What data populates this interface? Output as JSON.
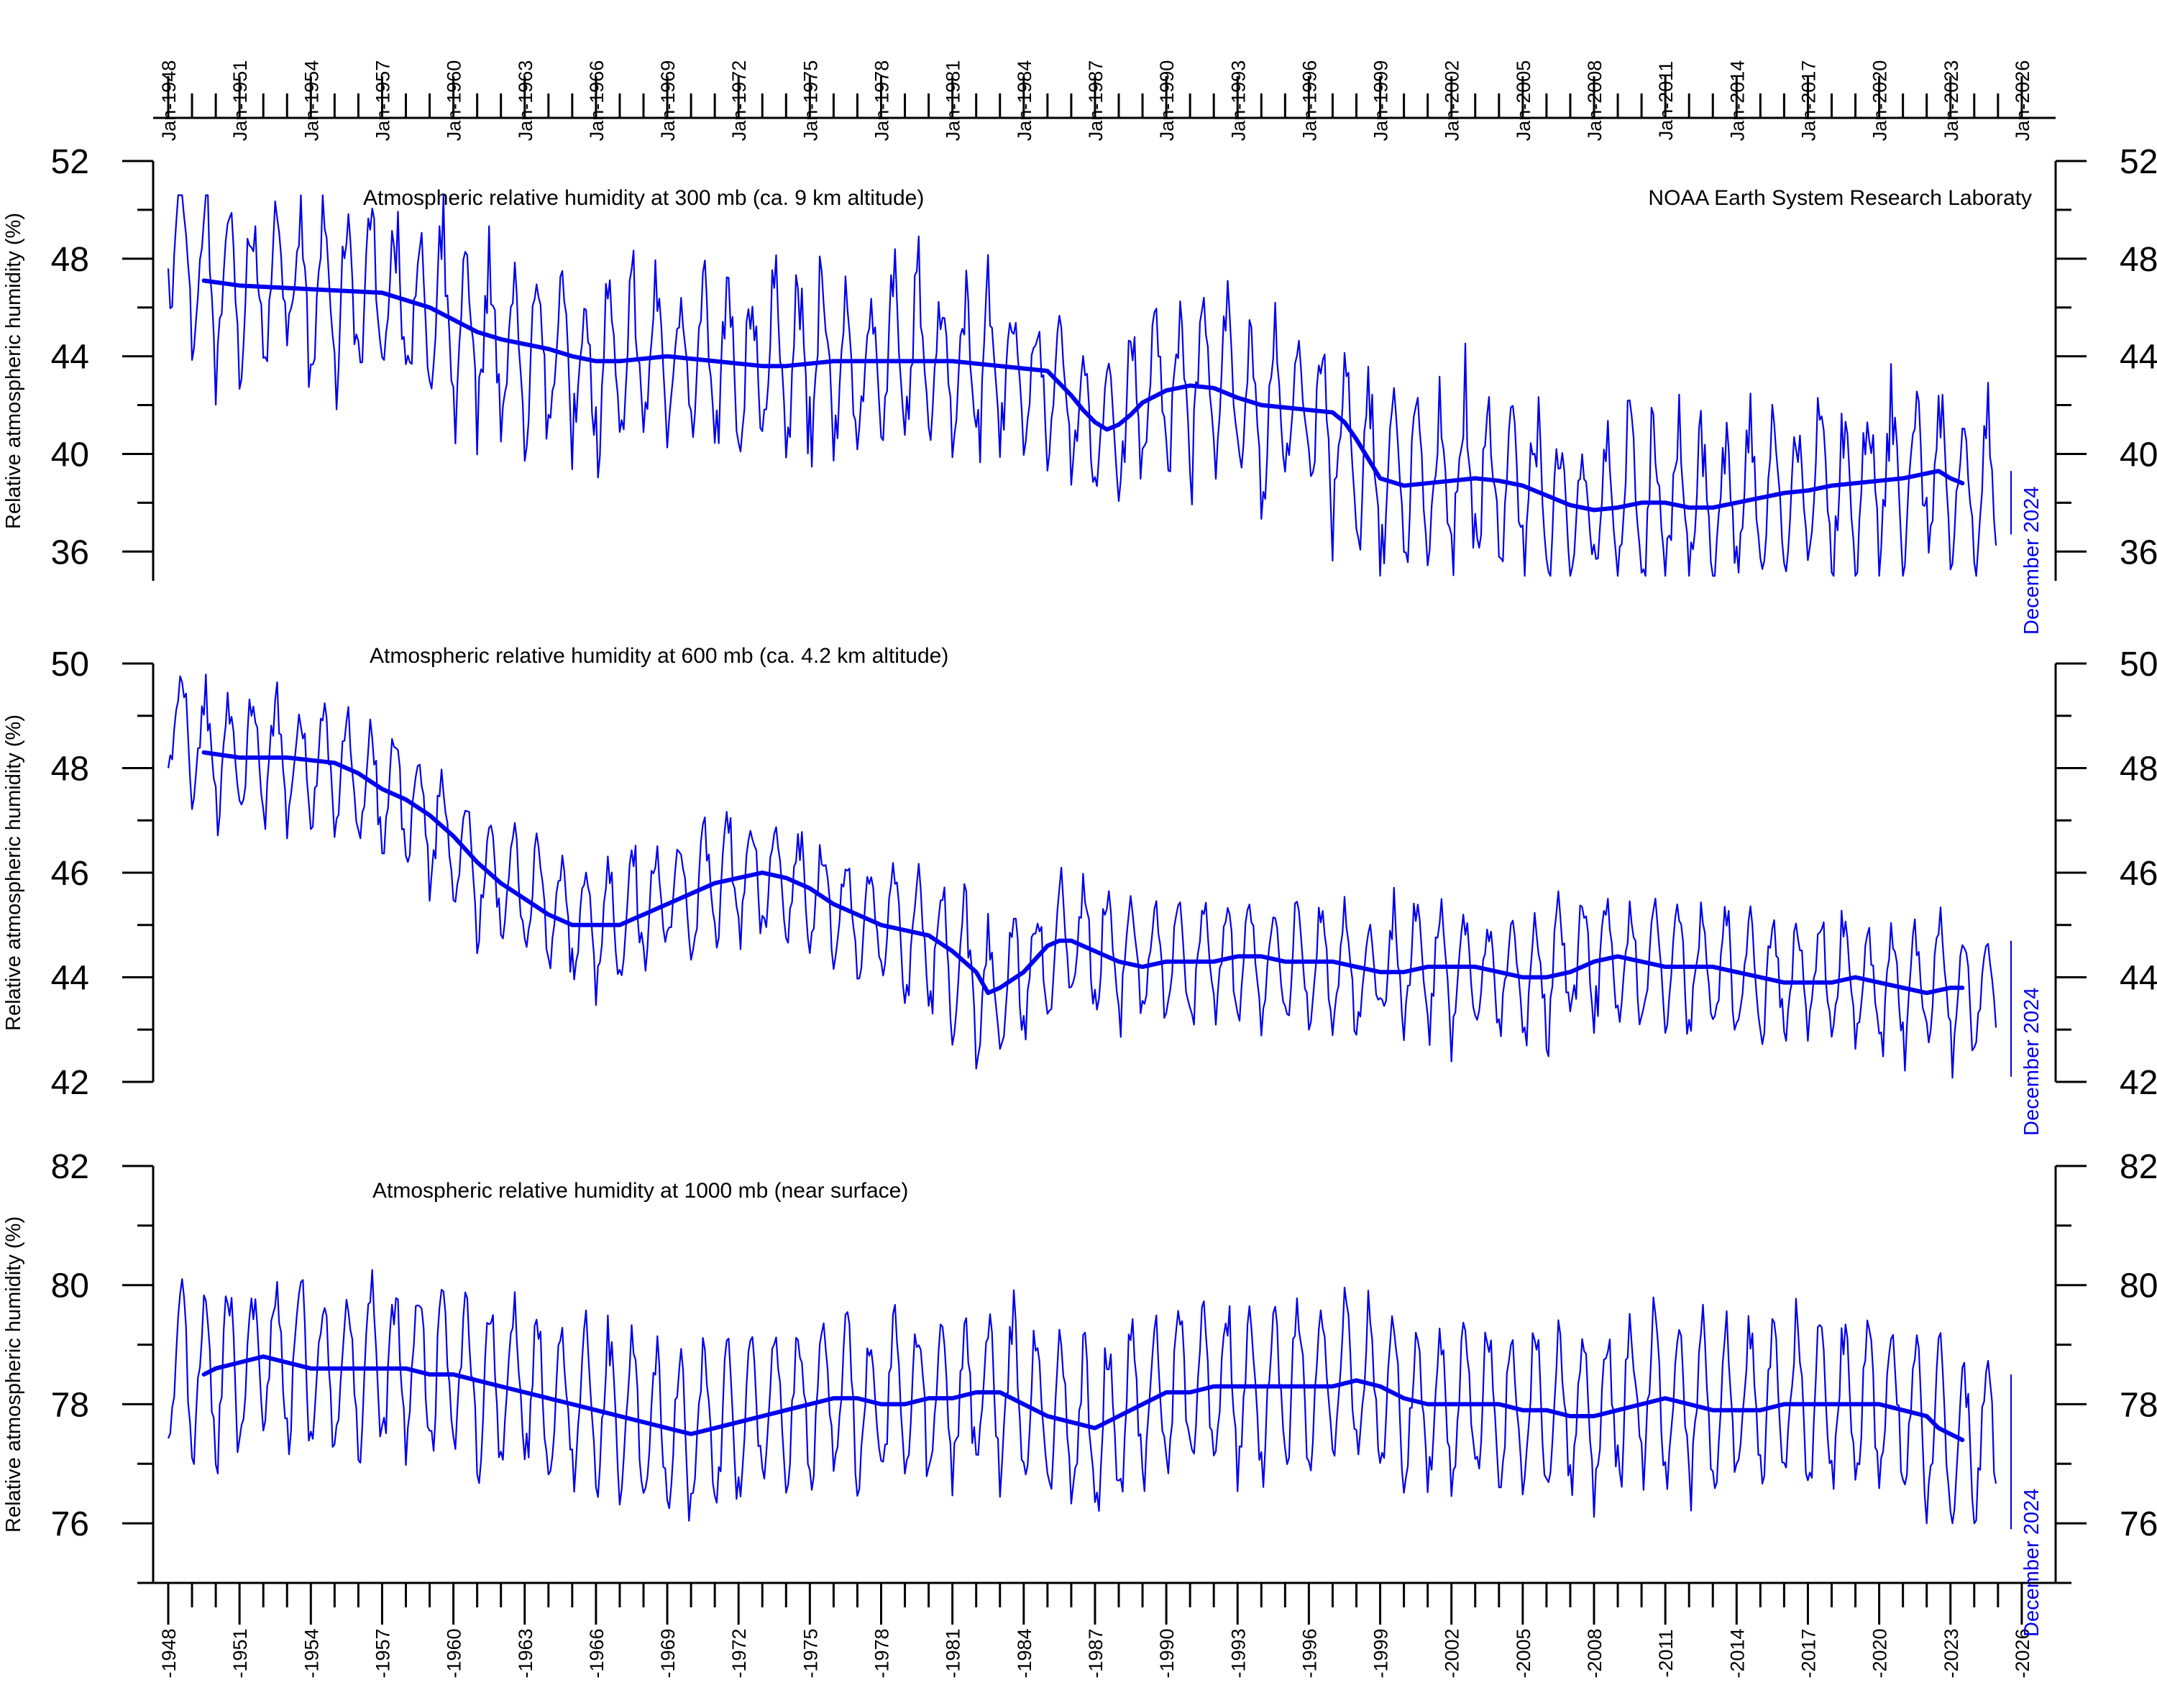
{
  "figure": {
    "credit": "NOAA Earth System Research Laboraty",
    "line_color": "#0000ee",
    "axis_color": "#000000",
    "top_tick_labels": [
      "Jan-1948",
      "Jan-1951",
      "Jan-1954",
      "Jan-1957",
      "Jan-1960",
      "Jan-1963",
      "Jan-1966",
      "Jan-1969",
      "Jan-1972",
      "Jan-1975",
      "Jan-1978",
      "Jan-1981",
      "Jan-1984",
      "Jan-1987",
      "Jan-1990",
      "Jan-1993",
      "Jan-1996",
      "Jan-1999",
      "Jan-2002",
      "Jan-2005",
      "Jan-2008",
      "Jan-2011",
      "Jan-2014",
      "Jan-2017",
      "Jan-2020",
      "Jan-2023",
      "Jan-2026"
    ],
    "bottom_tick_labels": [
      "-1948",
      "-1951",
      "-1954",
      "-1957",
      "-1960",
      "-1963",
      "-1966",
      "-1969",
      "-1972",
      "-1975",
      "-1978",
      "-1981",
      "-1984",
      "-1987",
      "-1990",
      "-1993",
      "-1996",
      "-1999",
      "-2002",
      "-2005",
      "-2008",
      "-2011",
      "-2014",
      "-2017",
      "-2020",
      "-2023",
      "-2026"
    ]
  },
  "chart_data": [
    {
      "type": "line",
      "title": "Atmospheric relative humidity at 300 mb (ca. 9 km altitude)",
      "ylabel": "Relative atmospheric humidity (%)",
      "end_label": "December 2024",
      "xlim": [
        "1947-07",
        "2026-07"
      ],
      "ylim": [
        34.8,
        52
      ],
      "yticks": [
        36,
        40,
        44,
        48,
        52
      ],
      "yticks_minor": [
        38,
        42,
        46,
        50
      ],
      "x_tick_start_year": 1948,
      "x_tick_step_years": 3,
      "series": [
        {
          "kind": "monthly",
          "start": "1948-01",
          "end": "2024-12",
          "annual_means": [
            48.6,
            47.4,
            47.1,
            47.0,
            46.9,
            46.8,
            46.7,
            46.6,
            46.3,
            46.2,
            46.0,
            45.5,
            45.0,
            44.8,
            44.5,
            44.3,
            44.1,
            43.8,
            43.8,
            43.9,
            44.0,
            43.9,
            43.8,
            43.8,
            43.5,
            43.5,
            43.7,
            43.9,
            43.8,
            43.7,
            43.8,
            43.9,
            43.8,
            43.7,
            43.6,
            43.6,
            43.4,
            42.8,
            41.8,
            41.0,
            41.5,
            42.2,
            42.7,
            42.9,
            42.6,
            42.2,
            41.9,
            41.9,
            41.5,
            40.6,
            39.5,
            38.8,
            38.9,
            38.9,
            39.0,
            38.9,
            38.8,
            38.5,
            38.1,
            37.7,
            37.8,
            38.0,
            37.9,
            37.7,
            37.7,
            37.8,
            38.0,
            38.2,
            38.3,
            38.5,
            38.6,
            38.8,
            38.9,
            39.1,
            39.4,
            38.8,
            38.3
          ],
          "seasonal_amplitude": [
            1.4,
            4.4
          ],
          "min": 35.0,
          "max": 50.6
        },
        {
          "kind": "running_mean_37_months",
          "x": [
            "1949-07",
            "1951-01",
            "1953-01",
            "1955-01",
            "1957-01",
            "1958-01",
            "1959-01",
            "1960-01",
            "1961-01",
            "1962-01",
            "1963-01",
            "1964-01",
            "1965-01",
            "1966-01",
            "1967-01",
            "1968-01",
            "1969-01",
            "1970-01",
            "1971-01",
            "1972-01",
            "1973-01",
            "1974-01",
            "1975-01",
            "1976-01",
            "1977-01",
            "1978-01",
            "1979-01",
            "1980-01",
            "1981-01",
            "1982-01",
            "1983-01",
            "1984-01",
            "1985-01",
            "1985-07",
            "1986-01",
            "1986-07",
            "1987-01",
            "1987-07",
            "1988-01",
            "1988-07",
            "1989-01",
            "1990-01",
            "1991-01",
            "1992-01",
            "1993-01",
            "1994-01",
            "1995-01",
            "1996-01",
            "1997-01",
            "1997-07",
            "1998-01",
            "1998-07",
            "1999-01",
            "2000-01",
            "2001-01",
            "2002-01",
            "2003-01",
            "2004-01",
            "2005-01",
            "2006-01",
            "2007-01",
            "2008-01",
            "2009-01",
            "2010-01",
            "2011-01",
            "2012-01",
            "2013-01",
            "2014-01",
            "2015-01",
            "2016-01",
            "2017-01",
            "2018-01",
            "2019-01",
            "2020-01",
            "2021-01",
            "2022-01",
            "2022-07",
            "2023-01",
            "2023-07"
          ],
          "y": [
            47.1,
            46.9,
            46.8,
            46.7,
            46.6,
            46.3,
            46.0,
            45.5,
            45.0,
            44.7,
            44.5,
            44.3,
            44.0,
            43.8,
            43.8,
            43.9,
            44.0,
            43.9,
            43.8,
            43.7,
            43.6,
            43.6,
            43.7,
            43.8,
            43.8,
            43.8,
            43.8,
            43.8,
            43.8,
            43.7,
            43.6,
            43.5,
            43.4,
            42.9,
            42.4,
            41.8,
            41.3,
            41.0,
            41.2,
            41.6,
            42.1,
            42.6,
            42.8,
            42.7,
            42.3,
            42.0,
            41.9,
            41.8,
            41.7,
            41.3,
            40.6,
            39.8,
            39.0,
            38.7,
            38.8,
            38.9,
            39.0,
            38.9,
            38.7,
            38.3,
            37.9,
            37.7,
            37.8,
            38.0,
            38.0,
            37.8,
            37.8,
            38.0,
            38.2,
            38.4,
            38.5,
            38.7,
            38.8,
            38.9,
            39.0,
            39.2,
            39.3,
            39.0,
            38.8
          ]
        }
      ]
    },
    {
      "type": "line",
      "title": "Atmospheric relative humidity at 600 mb (ca. 4.2 km altitude)",
      "ylabel": "Relative atmospheric humidity (%)",
      "end_label": "December 2024",
      "xlim": [
        "1947-07",
        "2026-07"
      ],
      "ylim": [
        42,
        50
      ],
      "yticks": [
        42,
        44,
        46,
        48,
        50
      ],
      "yticks_minor": [
        43,
        45,
        47,
        49
      ],
      "x_tick_start_year": 1948,
      "x_tick_step_years": 3,
      "series": [
        {
          "kind": "monthly",
          "start": "1948-01",
          "end": "2024-12",
          "annual_means": [
            48.9,
            48.4,
            48.3,
            48.3,
            48.2,
            48.2,
            48.1,
            48.0,
            47.7,
            47.5,
            47.3,
            46.9,
            46.4,
            46.0,
            45.8,
            45.5,
            45.3,
            45.1,
            45.0,
            45.1,
            45.3,
            45.5,
            45.6,
            45.8,
            45.9,
            45.9,
            45.8,
            45.6,
            45.3,
            45.1,
            45.0,
            44.8,
            44.7,
            44.2,
            43.8,
            43.9,
            44.2,
            44.6,
            44.7,
            44.6,
            44.4,
            44.3,
            44.3,
            44.3,
            44.3,
            44.3,
            44.3,
            44.3,
            44.2,
            44.1,
            44.1,
            44.2,
            44.2,
            44.2,
            44.1,
            44.1,
            44.0,
            44.0,
            44.2,
            44.3,
            44.4,
            44.2,
            44.2,
            44.2,
            44.2,
            44.1,
            44.0,
            43.9,
            43.9,
            44.0,
            44.0,
            43.9,
            43.8,
            43.8,
            43.8,
            43.8,
            43.7
          ],
          "seasonal_amplitude": [
            0.7,
            1.4
          ],
          "min": 42.0,
          "max": 49.8
        },
        {
          "kind": "running_mean_37_months",
          "x": [
            "1949-07",
            "1951-01",
            "1953-01",
            "1955-01",
            "1956-01",
            "1957-01",
            "1958-01",
            "1959-01",
            "1960-01",
            "1961-01",
            "1962-01",
            "1963-01",
            "1964-01",
            "1965-01",
            "1966-01",
            "1967-01",
            "1968-01",
            "1969-01",
            "1970-01",
            "1971-01",
            "1972-01",
            "1973-01",
            "1974-01",
            "1975-01",
            "1976-01",
            "1977-01",
            "1978-01",
            "1979-01",
            "1980-01",
            "1981-01",
            "1982-01",
            "1982-07",
            "1983-01",
            "1984-01",
            "1985-01",
            "1985-07",
            "1986-01",
            "1987-01",
            "1988-01",
            "1989-01",
            "1990-01",
            "1991-01",
            "1992-01",
            "1993-01",
            "1994-01",
            "1995-01",
            "1996-01",
            "1997-01",
            "1998-01",
            "1999-01",
            "2000-01",
            "2001-01",
            "2002-01",
            "2003-01",
            "2004-01",
            "2005-01",
            "2006-01",
            "2007-01",
            "2008-01",
            "2009-01",
            "2010-01",
            "2011-01",
            "2012-01",
            "2013-01",
            "2014-01",
            "2015-01",
            "2016-01",
            "2017-01",
            "2018-01",
            "2019-01",
            "2020-01",
            "2021-01",
            "2022-01",
            "2023-01",
            "2023-07"
          ],
          "y": [
            48.3,
            48.2,
            48.2,
            48.1,
            47.9,
            47.6,
            47.4,
            47.1,
            46.7,
            46.2,
            45.8,
            45.5,
            45.2,
            45.0,
            45.0,
            45.0,
            45.2,
            45.4,
            45.6,
            45.8,
            45.9,
            46.0,
            45.9,
            45.7,
            45.4,
            45.2,
            45.0,
            44.9,
            44.8,
            44.5,
            44.1,
            43.7,
            43.8,
            44.1,
            44.6,
            44.7,
            44.7,
            44.5,
            44.3,
            44.2,
            44.3,
            44.3,
            44.3,
            44.4,
            44.4,
            44.3,
            44.3,
            44.3,
            44.2,
            44.1,
            44.1,
            44.2,
            44.2,
            44.2,
            44.1,
            44.0,
            44.0,
            44.1,
            44.3,
            44.4,
            44.3,
            44.2,
            44.2,
            44.2,
            44.1,
            44.0,
            43.9,
            43.9,
            43.9,
            44.0,
            43.9,
            43.8,
            43.7,
            43.8,
            43.8
          ]
        }
      ]
    },
    {
      "type": "line",
      "title": "Atmospheric relative humidity at 1000 mb (near surface)",
      "ylabel": "Relative atmospheric humidity (%)",
      "end_label": "December 2024",
      "xlim": [
        "1947-07",
        "2026-07"
      ],
      "ylim": [
        75,
        82
      ],
      "yticks": [
        76,
        78,
        80,
        82
      ],
      "yticks_minor": [
        75,
        77,
        79,
        81
      ],
      "x_tick_start_year": 1948,
      "x_tick_step_years": 3,
      "series": [
        {
          "kind": "monthly",
          "start": "1948-01",
          "end": "2024-12",
          "annual_means": [
            78.8,
            78.4,
            78.6,
            78.7,
            78.8,
            78.7,
            78.7,
            78.6,
            78.6,
            78.6,
            78.6,
            78.5,
            78.5,
            78.4,
            78.3,
            78.2,
            78.1,
            78.0,
            77.9,
            77.7,
            77.6,
            77.5,
            77.5,
            77.6,
            77.7,
            77.9,
            78.0,
            78.1,
            78.1,
            78.0,
            78.0,
            78.1,
            78.1,
            78.1,
            78.2,
            78.2,
            78.0,
            77.8,
            77.6,
            77.6,
            77.9,
            78.1,
            78.2,
            78.3,
            78.3,
            78.3,
            78.3,
            78.3,
            78.3,
            78.4,
            78.3,
            78.1,
            78.0,
            78.0,
            78.0,
            78.0,
            77.9,
            77.9,
            77.9,
            77.8,
            77.8,
            78.0,
            78.1,
            78.0,
            77.9,
            77.9,
            77.9,
            78.0,
            78.0,
            78.0,
            78.0,
            78.0,
            78.0,
            77.9,
            77.6,
            77.4,
            77.5
          ],
          "seasonal_amplitude": [
            1.0,
            1.5
          ],
          "min": 76.0,
          "max": 80.3
        },
        {
          "kind": "running_mean_37_months",
          "x": [
            "1949-07",
            "1950-01",
            "1951-01",
            "1952-01",
            "1953-01",
            "1954-01",
            "1955-01",
            "1956-01",
            "1957-01",
            "1958-01",
            "1959-01",
            "1960-01",
            "1961-01",
            "1962-01",
            "1963-01",
            "1964-01",
            "1965-01",
            "1966-01",
            "1967-01",
            "1968-01",
            "1969-01",
            "1970-01",
            "1971-01",
            "1972-01",
            "1973-01",
            "1974-01",
            "1975-01",
            "1976-01",
            "1977-01",
            "1978-01",
            "1979-01",
            "1980-01",
            "1981-01",
            "1982-01",
            "1983-01",
            "1984-01",
            "1985-01",
            "1986-01",
            "1987-01",
            "1988-01",
            "1989-01",
            "1990-01",
            "1991-01",
            "1992-01",
            "1993-01",
            "1994-01",
            "1995-01",
            "1996-01",
            "1997-01",
            "1998-01",
            "1999-01",
            "2000-01",
            "2001-01",
            "2002-01",
            "2003-01",
            "2004-01",
            "2005-01",
            "2006-01",
            "2007-01",
            "2008-01",
            "2009-01",
            "2010-01",
            "2011-01",
            "2012-01",
            "2013-01",
            "2014-01",
            "2015-01",
            "2016-01",
            "2017-01",
            "2018-01",
            "2019-01",
            "2020-01",
            "2021-01",
            "2022-01",
            "2022-07",
            "2023-01",
            "2023-07"
          ],
          "y": [
            78.5,
            78.6,
            78.7,
            78.8,
            78.7,
            78.6,
            78.6,
            78.6,
            78.6,
            78.6,
            78.5,
            78.5,
            78.4,
            78.3,
            78.2,
            78.1,
            78.0,
            77.9,
            77.8,
            77.7,
            77.6,
            77.5,
            77.6,
            77.7,
            77.8,
            77.9,
            78.0,
            78.1,
            78.1,
            78.0,
            78.0,
            78.1,
            78.1,
            78.2,
            78.2,
            78.0,
            77.8,
            77.7,
            77.6,
            77.8,
            78.0,
            78.2,
            78.2,
            78.3,
            78.3,
            78.3,
            78.3,
            78.3,
            78.3,
            78.4,
            78.3,
            78.1,
            78.0,
            78.0,
            78.0,
            78.0,
            77.9,
            77.9,
            77.8,
            77.8,
            77.9,
            78.0,
            78.1,
            78.0,
            77.9,
            77.9,
            77.9,
            78.0,
            78.0,
            78.0,
            78.0,
            78.0,
            77.9,
            77.8,
            77.6,
            77.5,
            77.4
          ]
        }
      ]
    }
  ]
}
